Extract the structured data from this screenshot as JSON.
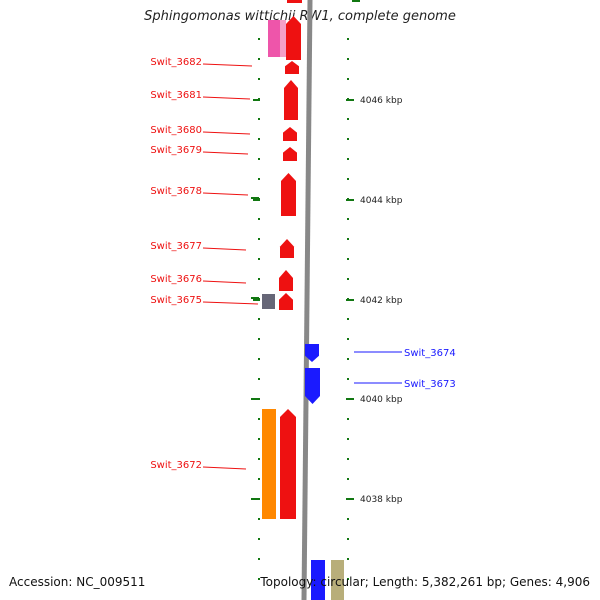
{
  "title": "Sphingomonas wittichii RW1, complete genome",
  "footer": {
    "accession": "Accession: NC_009511",
    "stats": "Topology: circular; Length: 5,382,261 bp; Genes: 4,906"
  },
  "colors": {
    "reverse_gene": "#ee1111",
    "forward_gene": "#1a1aff",
    "backbone": "#888888",
    "tick": "#117711",
    "orange_feature": "#ff8800",
    "pink_feature": "#ee55aa",
    "gray_feature": "#666677",
    "tan_feature": "#b8ae7a"
  },
  "scale": {
    "unit": "kbp",
    "ticks": [
      "4046 kbp",
      "4044 kbp",
      "4042 kbp",
      "4040 kbp",
      "4038 kbp"
    ]
  },
  "reverse_strand_genes": [
    "Swit_3682",
    "Swit_3681",
    "Swit_3680",
    "Swit_3679",
    "Swit_3678",
    "Swit_3677",
    "Swit_3676",
    "Swit_3675",
    "Swit_3672"
  ],
  "forward_strand_genes": [
    "Swit_3674",
    "Swit_3673"
  ]
}
